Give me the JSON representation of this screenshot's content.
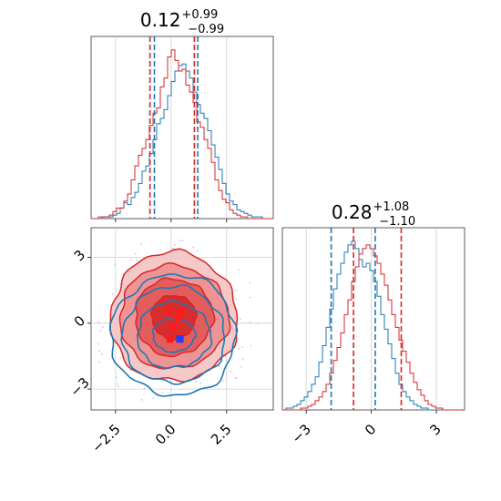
{
  "chart_data": [
    {
      "type": "histogram",
      "panel": "marginal-param-1",
      "title": {
        "value": "0.12",
        "plus": "+0.99",
        "minus": "−0.99"
      },
      "xlim": [
        -3.6,
        4.6
      ],
      "bin_width": 0.164,
      "series": [
        {
          "color": "#1f77b4",
          "quantiles": [
            -0.75,
            1.2
          ],
          "counts": [
            0,
            0,
            0,
            1,
            1,
            1,
            2,
            3,
            6,
            9,
            8,
            12,
            15,
            20,
            27,
            30,
            37,
            45,
            54,
            57,
            62,
            70,
            78,
            84,
            87,
            88,
            84,
            80,
            72,
            65,
            60,
            57,
            50,
            42,
            35,
            28,
            20,
            14,
            10,
            8,
            5,
            4,
            3,
            2,
            1,
            1,
            1,
            0,
            0,
            0
          ]
        },
        {
          "color": "#d62728",
          "quantiles": [
            -0.95,
            1.05
          ],
          "counts": [
            0,
            0,
            1,
            1,
            1,
            2,
            4,
            6,
            6,
            10,
            14,
            22,
            30,
            36,
            40,
            45,
            53,
            60,
            63,
            75,
            80,
            92,
            96,
            90,
            84,
            85,
            76,
            72,
            66,
            55,
            52,
            45,
            40,
            32,
            22,
            16,
            11,
            9,
            5,
            3,
            2,
            1,
            1,
            0,
            0,
            0,
            0,
            0,
            0,
            0
          ]
        }
      ]
    },
    {
      "type": "histogram",
      "panel": "marginal-param-2",
      "title": {
        "value": "0.28",
        "plus": "+1.08",
        "minus": "−1.10"
      },
      "xlim": [
        -4.1,
        4.3
      ],
      "bin_width": 0.168,
      "series": [
        {
          "color": "#1f77b4",
          "quantiles": [
            -1.85,
            0.18
          ],
          "counts": [
            0,
            1,
            1,
            2,
            3,
            5,
            7,
            10,
            14,
            18,
            26,
            35,
            45,
            55,
            66,
            74,
            80,
            86,
            90,
            92,
            88,
            82,
            78,
            80,
            76,
            70,
            62,
            52,
            44,
            36,
            28,
            20,
            14,
            10,
            7,
            5,
            3,
            2,
            1,
            1,
            0,
            0,
            0,
            0,
            0,
            0,
            0,
            0,
            0,
            0
          ]
        },
        {
          "color": "#d62728",
          "quantiles": [
            -0.82,
            1.38
          ],
          "counts": [
            0,
            0,
            0,
            0,
            0,
            1,
            1,
            2,
            3,
            5,
            7,
            10,
            14,
            20,
            27,
            34,
            42,
            52,
            60,
            70,
            78,
            85,
            88,
            90,
            88,
            84,
            80,
            74,
            68,
            60,
            52,
            45,
            38,
            32,
            26,
            20,
            15,
            11,
            8,
            5,
            3,
            2,
            1,
            1,
            0,
            0,
            0,
            0,
            0,
            0
          ]
        }
      ]
    },
    {
      "type": "contour",
      "panel": "joint-param-1-vs-param-2",
      "xlim": [
        -3.6,
        4.6
      ],
      "ylim": [
        -3.95,
        4.35
      ],
      "x_ticks": [
        "−2.5",
        "0.0",
        "2.5"
      ],
      "y_ticks": [
        "−3",
        "0",
        "3"
      ],
      "tick_values_x": [
        -2.5,
        0,
        2.5
      ],
      "tick_values_y": [
        -3,
        0,
        3
      ],
      "series": [
        {
          "color": "#1f77b4",
          "center": [
            0.12,
            -0.55
          ],
          "levels": [
            {
              "rx": 0.95,
              "ry": 0.75
            },
            {
              "rx": 1.65,
              "ry": 1.5
            },
            {
              "rx": 2.3,
              "ry": 2.2
            },
            {
              "rx": 2.8,
              "ry": 2.75
            }
          ],
          "marker": [
            0.4,
            -0.72
          ]
        },
        {
          "color": "#d62728",
          "center": [
            0.12,
            0.28
          ],
          "levels": [
            {
              "rx": 1.0,
              "ry": 1.0
            },
            {
              "rx": 1.75,
              "ry": 1.75
            },
            {
              "rx": 2.45,
              "ry": 2.35
            },
            {
              "rx": 2.85,
              "ry": 2.95
            }
          ],
          "marker": [
            0.4,
            0.7
          ]
        }
      ]
    }
  ]
}
